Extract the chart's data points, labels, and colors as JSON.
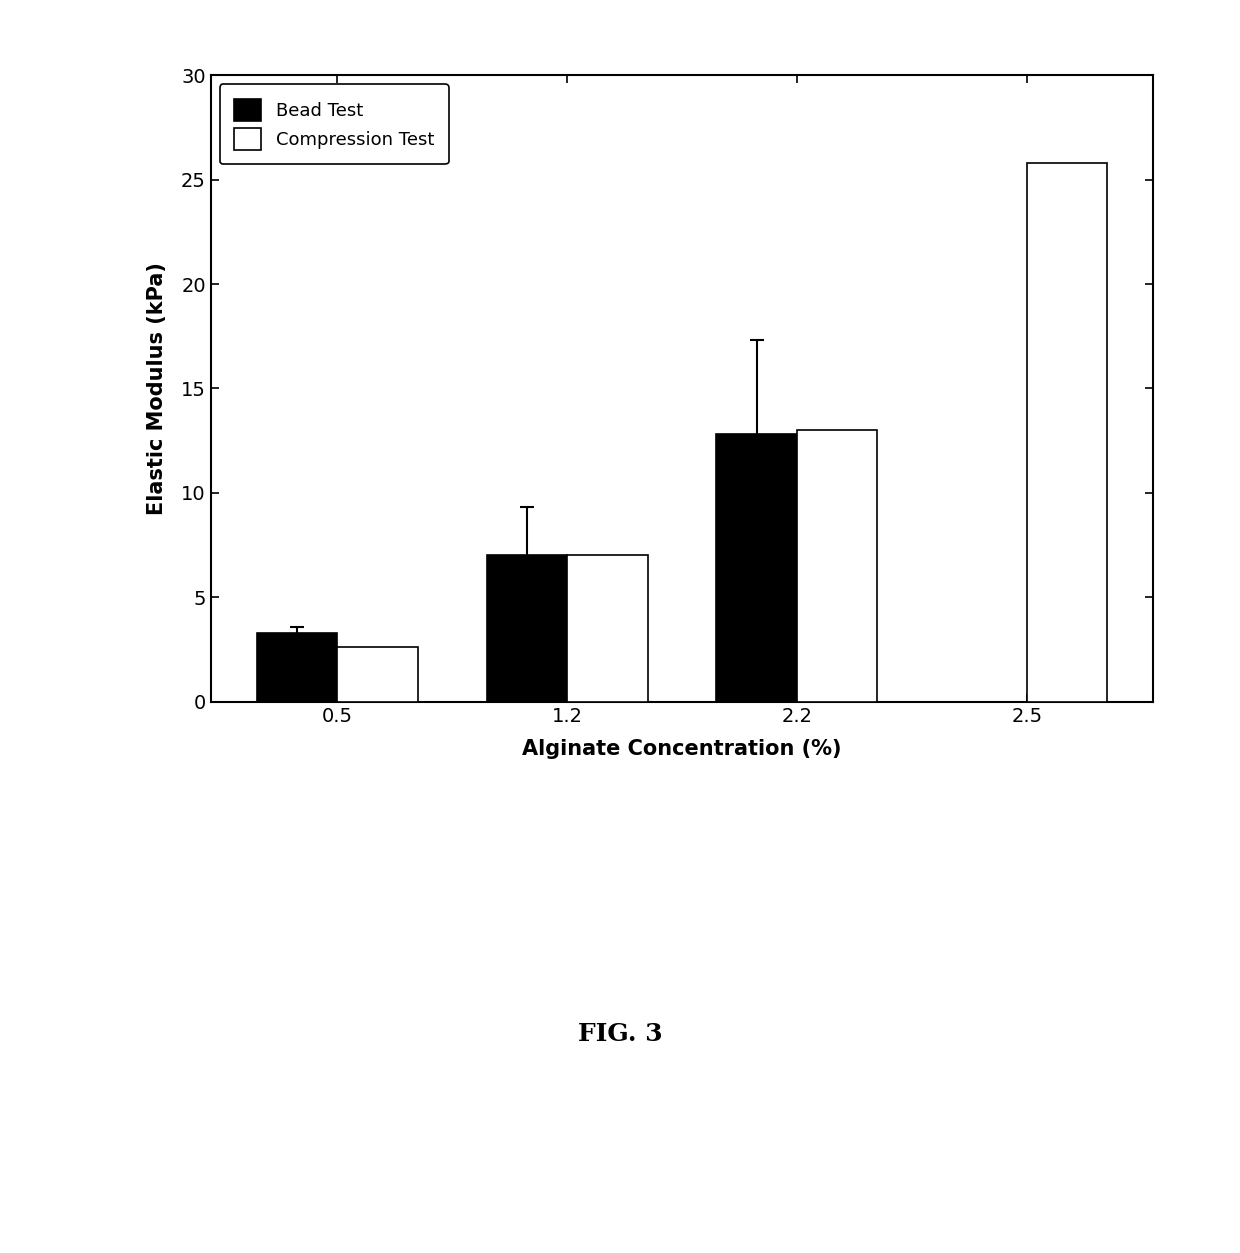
{
  "categories": [
    "0.5",
    "1.2",
    "2.2",
    "2.5"
  ],
  "bead_values": [
    3.3,
    7.0,
    12.8,
    null
  ],
  "compression_values": [
    2.6,
    7.0,
    13.0,
    25.8
  ],
  "bead_errors": [
    0.3,
    2.3,
    4.5,
    null
  ],
  "xlabel": "Alginate Concentration (%)",
  "ylabel": "Elastic Modulus (kPa)",
  "ylim": [
    0,
    30
  ],
  "yticks": [
    0,
    5,
    10,
    15,
    20,
    25,
    30
  ],
  "legend_labels": [
    "Bead Test",
    "Compression Test"
  ],
  "bead_color": "#000000",
  "compression_color": "#ffffff",
  "bar_width": 0.35,
  "fig_caption": "FIG. 3",
  "background_color": "#ffffff",
  "axis_fontsize": 15,
  "tick_fontsize": 14,
  "legend_fontsize": 13
}
